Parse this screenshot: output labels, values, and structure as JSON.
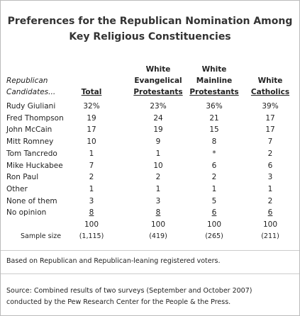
{
  "title_lines": [
    "Preferences for the Republican Nomination Among",
    "Key Religious Constituencies"
  ],
  "table": {
    "row_header_lines": [
      "Republican",
      "Candidates..."
    ],
    "columns": [
      [
        "Total"
      ],
      [
        "White",
        "Evangelical",
        "Protestants"
      ],
      [
        "White",
        "Mainline",
        "Protestants"
      ],
      [
        "White",
        "Catholics"
      ]
    ],
    "rows": [
      {
        "label": "Rudy Giuliani",
        "values": [
          "32%",
          "23%",
          "36%",
          "39%"
        ]
      },
      {
        "label": "Fred Thompson",
        "values": [
          "19",
          "24",
          "21",
          "17"
        ]
      },
      {
        "label": "John McCain",
        "values": [
          "17",
          "19",
          "15",
          "17"
        ]
      },
      {
        "label": "Mitt Romney",
        "values": [
          "10",
          "9",
          "8",
          "7"
        ]
      },
      {
        "label": "Tom Tancredo",
        "values": [
          "1",
          "1",
          "*",
          "2"
        ]
      },
      {
        "label": "Mike Huckabee",
        "values": [
          "7",
          "10",
          "6",
          "6"
        ]
      },
      {
        "label": "Ron Paul",
        "values": [
          "2",
          "2",
          "2",
          "3"
        ]
      },
      {
        "label": "Other",
        "values": [
          "1",
          "1",
          "1",
          "1"
        ]
      },
      {
        "label": "None of them",
        "values": [
          "3",
          "3",
          "5",
          "2"
        ]
      },
      {
        "label": "No opinion",
        "values": [
          "8",
          "8",
          "6",
          "6"
        ]
      }
    ],
    "total_row": [
      "100",
      "100",
      "100",
      "100"
    ],
    "sample_size": {
      "label": "Sample size",
      "values": [
        "(1,115)",
        "(419)",
        "(265)",
        "(211)"
      ]
    }
  },
  "note": "Based on Republican and Republican-leaning registered voters.",
  "source_lines": [
    "Source: Combined results of two surveys (September and October 2007)",
    "conducted by the Pew Research Center for the People & the Press."
  ]
}
